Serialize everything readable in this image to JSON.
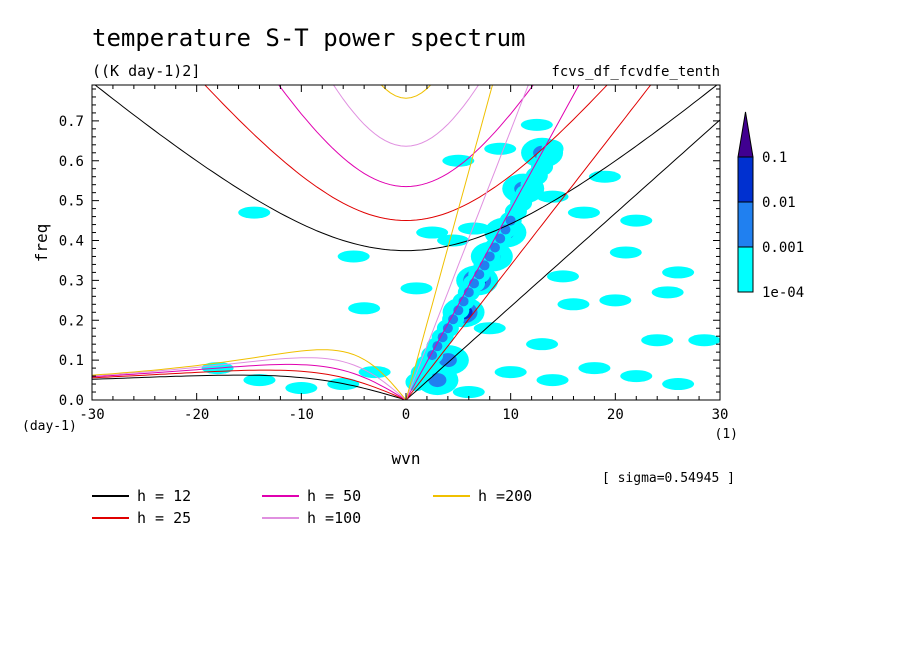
{
  "chart_data": {
    "type": "heatmap",
    "title": "temperature S-T power spectrum",
    "subtitle": "((K day-1)2]",
    "source_label": "fcvs_df_fcvdfe_tenth",
    "xlabel": "wvn",
    "ylabel": "freq",
    "x_unit": "(1)",
    "y_unit": "(day-1)",
    "xlim": [
      -30,
      30
    ],
    "ylim": [
      0,
      0.79
    ],
    "x_ticks": [
      -30,
      -20,
      -10,
      0,
      10,
      20,
      30
    ],
    "x_tick_labels": [
      "-30",
      "-20",
      "-10",
      "0",
      "10",
      "20",
      "30"
    ],
    "y_ticks": [
      0.0,
      0.1,
      0.2,
      0.3,
      0.4,
      0.5,
      0.6,
      0.7
    ],
    "y_tick_labels": [
      "0.0",
      "0.1",
      "0.2",
      "0.3",
      "0.4",
      "0.5",
      "0.6",
      "0.7"
    ],
    "sigma_label": "[ sigma=0.54945 ]",
    "colorbar": {
      "levels": [
        "1e-04",
        "0.001",
        "0.01",
        "0.1"
      ],
      "colors": [
        "#00ffff",
        "#2080f0",
        "#0030d0",
        "#400090"
      ]
    },
    "dispersion_curves": [
      {
        "label": "h = 12",
        "h": 12,
        "color": "#000000"
      },
      {
        "label": "h = 25",
        "h": 25,
        "color": "#e00000"
      },
      {
        "label": "h = 50",
        "h": 50,
        "color": "#e000b0"
      },
      {
        "label": "h =100",
        "h": 100,
        "color": "#e090e0"
      },
      {
        "label": "h =200",
        "h": 200,
        "color": "#f0c000"
      }
    ],
    "power_blobs": [
      {
        "k": 4.0,
        "f": 0.1,
        "level": 1
      },
      {
        "k": 5.5,
        "f": 0.22,
        "level": 2
      },
      {
        "k": 6.8,
        "f": 0.3,
        "level": 2
      },
      {
        "k": 8.2,
        "f": 0.36,
        "level": 1
      },
      {
        "k": 9.5,
        "f": 0.42,
        "level": 1
      },
      {
        "k": 11.2,
        "f": 0.53,
        "level": 1
      },
      {
        "k": 13.0,
        "f": 0.62,
        "level": 1
      },
      {
        "k": 3.0,
        "f": 0.05,
        "level": 1
      },
      {
        "k": 6.5,
        "f": 0.43,
        "level": 0
      },
      {
        "k": 4.5,
        "f": 0.4,
        "level": 0
      },
      {
        "k": 2.5,
        "f": 0.42,
        "level": 0
      },
      {
        "k": 5.0,
        "f": 0.6,
        "level": 0
      },
      {
        "k": 9.0,
        "f": 0.63,
        "level": 0
      },
      {
        "k": 12.5,
        "f": 0.69,
        "level": 0
      },
      {
        "k": -3.0,
        "f": 0.07,
        "level": 0
      },
      {
        "k": -6.0,
        "f": 0.04,
        "level": 0
      },
      {
        "k": -10.0,
        "f": 0.03,
        "level": 0
      },
      {
        "k": -4.0,
        "f": 0.23,
        "level": 0
      },
      {
        "k": -14.0,
        "f": 0.05,
        "level": 0
      },
      {
        "k": 10.0,
        "f": 0.07,
        "level": 0
      },
      {
        "k": 14.0,
        "f": 0.05,
        "level": 0
      },
      {
        "k": 18.0,
        "f": 0.08,
        "level": 0
      },
      {
        "k": 22.0,
        "f": 0.06,
        "level": 0
      },
      {
        "k": 26.0,
        "f": 0.04,
        "level": 0
      },
      {
        "k": 16.0,
        "f": 0.24,
        "level": 0
      },
      {
        "k": 20.0,
        "f": 0.25,
        "level": 0
      },
      {
        "k": 25.0,
        "f": 0.27,
        "level": 0
      },
      {
        "k": 15.0,
        "f": 0.31,
        "level": 0
      },
      {
        "k": 21.0,
        "f": 0.37,
        "level": 0
      },
      {
        "k": 26.0,
        "f": 0.32,
        "level": 0
      },
      {
        "k": 17.0,
        "f": 0.47,
        "level": 0
      },
      {
        "k": 22.0,
        "f": 0.45,
        "level": 0
      },
      {
        "k": 19.0,
        "f": 0.56,
        "level": 0
      },
      {
        "k": 14.0,
        "f": 0.51,
        "level": 0
      },
      {
        "k": -18.0,
        "f": 0.08,
        "level": 0
      },
      {
        "k": 28.5,
        "f": 0.15,
        "level": 0
      },
      {
        "k": 24.0,
        "f": 0.15,
        "level": 0
      },
      {
        "k": -5.0,
        "f": 0.36,
        "level": 0
      },
      {
        "k": -14.5,
        "f": 0.47,
        "level": 0
      },
      {
        "k": 8.0,
        "f": 0.18,
        "level": 0
      },
      {
        "k": 1.0,
        "f": 0.28,
        "level": 0
      },
      {
        "k": 13.0,
        "f": 0.14,
        "level": 0
      },
      {
        "k": 6.0,
        "f": 0.02,
        "level": 0
      }
    ]
  }
}
